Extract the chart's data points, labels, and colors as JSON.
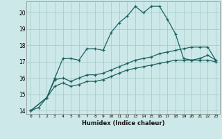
{
  "xlabel": "Humidex (Indice chaleur)",
  "bg_color": "#cce8e8",
  "grid_color": "#aacccc",
  "line_color": "#1a6060",
  "xlim": [
    -0.5,
    23.5
  ],
  "ylim": [
    13.8,
    20.7
  ],
  "yticks": [
    14,
    15,
    16,
    17,
    18,
    19,
    20
  ],
  "xticks": [
    0,
    1,
    2,
    3,
    4,
    5,
    6,
    7,
    8,
    9,
    10,
    11,
    12,
    13,
    14,
    15,
    16,
    17,
    18,
    19,
    20,
    21,
    22,
    23
  ],
  "series1_x": [
    0,
    1,
    2,
    3,
    4,
    5,
    6,
    7,
    8,
    9,
    10,
    11,
    12,
    13,
    14,
    15,
    16,
    17,
    18,
    19,
    20,
    21,
    22,
    23
  ],
  "series1_y": [
    14.0,
    14.2,
    14.8,
    16.0,
    17.2,
    17.2,
    17.1,
    17.8,
    17.8,
    17.7,
    18.8,
    19.4,
    19.8,
    20.4,
    20.0,
    20.4,
    20.4,
    19.6,
    18.7,
    17.2,
    17.1,
    17.2,
    17.4,
    17.1
  ],
  "series2_x": [
    0,
    2,
    3,
    4,
    5,
    6,
    7,
    8,
    9,
    10,
    11,
    12,
    13,
    14,
    15,
    16,
    17,
    18,
    19,
    20,
    21,
    22,
    23
  ],
  "series2_y": [
    14.0,
    14.8,
    15.9,
    16.0,
    15.8,
    16.0,
    16.2,
    16.2,
    16.3,
    16.5,
    16.7,
    16.9,
    17.1,
    17.2,
    17.3,
    17.5,
    17.6,
    17.7,
    17.8,
    17.9,
    17.9,
    17.9,
    17.1
  ],
  "series3_x": [
    0,
    2,
    3,
    4,
    5,
    6,
    7,
    8,
    9,
    10,
    11,
    12,
    13,
    14,
    15,
    16,
    17,
    18,
    19,
    20,
    21,
    22,
    23
  ],
  "series3_y": [
    14.0,
    14.8,
    15.5,
    15.7,
    15.5,
    15.6,
    15.8,
    15.8,
    15.9,
    16.1,
    16.3,
    16.5,
    16.6,
    16.7,
    16.8,
    16.9,
    17.0,
    17.1,
    17.1,
    17.1,
    17.1,
    17.1,
    17.0
  ]
}
